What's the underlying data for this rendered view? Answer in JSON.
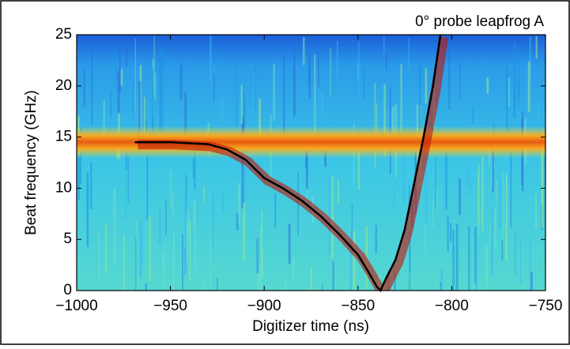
{
  "chart_data": {
    "type": "line",
    "title": "0° probe leapfrog A",
    "x_label": "Digitizer time (ns)",
    "y_label": "Beat frequency (GHz)",
    "x": [
      -969,
      -960,
      -950,
      -940,
      -930,
      -920,
      -910,
      -900,
      -890,
      -880,
      -870,
      -860,
      -850,
      -845,
      -840,
      -838,
      -835,
      -830,
      -825,
      -820,
      -815,
      -810,
      -806
    ],
    "series": [
      {
        "color": "#000000",
        "values": [
          14.5,
          14.5,
          14.5,
          14.4,
          14.3,
          13.8,
          12.8,
          11.0,
          10.0,
          8.8,
          7.3,
          5.5,
          3.5,
          2.0,
          0.4,
          0,
          1.2,
          3.0,
          6.0,
          10.5,
          15.0,
          20.0,
          25.0
        ]
      }
    ],
    "xlim": [
      -1000,
      -750
    ],
    "ylim": [
      0,
      25
    ],
    "xticks": [
      {
        "value": -1000,
        "label": "−1000"
      },
      {
        "value": -950,
        "label": "−950"
      },
      {
        "value": -900,
        "label": "−900"
      },
      {
        "value": -850,
        "label": "−850"
      },
      {
        "value": -800,
        "label": "−800"
      },
      {
        "value": -750,
        "label": "−750"
      }
    ],
    "yticks": [
      0,
      5,
      10,
      15,
      20,
      25
    ]
  }
}
